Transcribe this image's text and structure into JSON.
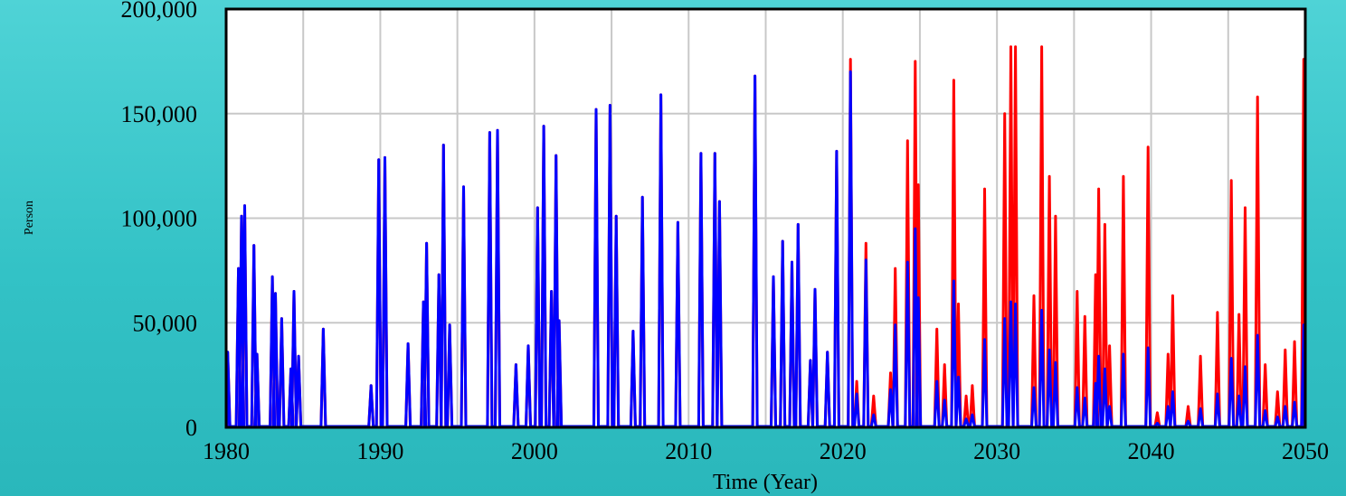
{
  "chart_data": {
    "type": "line",
    "title": "",
    "xlabel": "Time (Year)",
    "ylabel": "Person",
    "xlim": [
      1980,
      2050
    ],
    "ylim": [
      0,
      200000
    ],
    "x_ticks": [
      1980,
      1990,
      2000,
      2010,
      2020,
      2030,
      2040,
      2050
    ],
    "x_tick_labels": [
      "1980",
      "1990",
      "2000",
      "2010",
      "2020",
      "2030",
      "2040",
      "2050"
    ],
    "y_ticks": [
      0,
      50000,
      100000,
      150000,
      200000
    ],
    "y_tick_labels": [
      "0",
      "50,000",
      "100,000",
      "150,000",
      "200,000"
    ],
    "grid": true,
    "series": [
      {
        "color": "#ff0000",
        "peaks": [
          [
            1980.1,
            36000
          ],
          [
            1980.8,
            76000
          ],
          [
            1981.0,
            101000
          ],
          [
            1981.2,
            106000
          ],
          [
            1981.8,
            87000
          ],
          [
            1982.0,
            35000
          ],
          [
            1983.0,
            72000
          ],
          [
            1983.2,
            64000
          ],
          [
            1983.6,
            52000
          ],
          [
            1984.2,
            28000
          ],
          [
            1984.4,
            65000
          ],
          [
            1984.7,
            34000
          ],
          [
            1986.3,
            47000
          ],
          [
            1989.4,
            20000
          ],
          [
            1989.9,
            128000
          ],
          [
            1990.3,
            129000
          ],
          [
            1991.8,
            40000
          ],
          [
            1992.8,
            60000
          ],
          [
            1993.0,
            88000
          ],
          [
            1993.8,
            73000
          ],
          [
            1994.1,
            135000
          ],
          [
            1994.5,
            49000
          ],
          [
            1995.4,
            115000
          ],
          [
            1997.1,
            141000
          ],
          [
            1997.6,
            142000
          ],
          [
            1998.8,
            30000
          ],
          [
            1999.6,
            39000
          ],
          [
            2000.2,
            105000
          ],
          [
            2000.6,
            144000
          ],
          [
            2001.1,
            65000
          ],
          [
            2001.4,
            130000
          ],
          [
            2001.6,
            51000
          ],
          [
            2004.0,
            152000
          ],
          [
            2004.9,
            154000
          ],
          [
            2005.3,
            101000
          ],
          [
            2006.4,
            46000
          ],
          [
            2007.0,
            110000
          ],
          [
            2008.2,
            159000
          ],
          [
            2009.3,
            98000
          ],
          [
            2010.8,
            131000
          ],
          [
            2011.7,
            131000
          ],
          [
            2012.0,
            108000
          ],
          [
            2014.3,
            168000
          ],
          [
            2015.5,
            72000
          ],
          [
            2016.1,
            89000
          ],
          [
            2016.7,
            79000
          ],
          [
            2017.1,
            97000
          ],
          [
            2017.9,
            32000
          ],
          [
            2018.2,
            66000
          ],
          [
            2019.0,
            36000
          ],
          [
            2019.6,
            132000
          ],
          [
            2020.5,
            176000
          ],
          [
            2020.9,
            22000
          ],
          [
            2021.5,
            88000
          ],
          [
            2022.0,
            15000
          ],
          [
            2023.1,
            26000
          ],
          [
            2023.4,
            76000
          ],
          [
            2024.2,
            137000
          ],
          [
            2024.7,
            175000
          ],
          [
            2024.9,
            116000
          ],
          [
            2026.1,
            47000
          ],
          [
            2026.6,
            30000
          ],
          [
            2027.2,
            166000
          ],
          [
            2027.5,
            59000
          ],
          [
            2028.0,
            15000
          ],
          [
            2028.4,
            20000
          ],
          [
            2029.2,
            114000
          ],
          [
            2030.5,
            150000
          ],
          [
            2030.9,
            182000
          ],
          [
            2031.2,
            182000
          ],
          [
            2032.4,
            63000
          ],
          [
            2032.9,
            182000
          ],
          [
            2033.4,
            120000
          ],
          [
            2033.8,
            101000
          ],
          [
            2035.2,
            65000
          ],
          [
            2035.7,
            53000
          ],
          [
            2036.4,
            73000
          ],
          [
            2036.6,
            114000
          ],
          [
            2037.0,
            97000
          ],
          [
            2037.3,
            39000
          ],
          [
            2038.2,
            120000
          ],
          [
            2039.8,
            134000
          ],
          [
            2040.4,
            7000
          ],
          [
            2041.1,
            35000
          ],
          [
            2041.4,
            63000
          ],
          [
            2042.4,
            10000
          ],
          [
            2043.2,
            34000
          ],
          [
            2044.3,
            55000
          ],
          [
            2045.2,
            118000
          ],
          [
            2045.7,
            54000
          ],
          [
            2046.1,
            105000
          ],
          [
            2046.9,
            158000
          ],
          [
            2047.4,
            30000
          ],
          [
            2048.2,
            17000
          ],
          [
            2048.7,
            37000
          ],
          [
            2049.3,
            41000
          ],
          [
            2049.9,
            176000
          ]
        ]
      },
      {
        "color": "#0000ff",
        "peaks": [
          [
            1980.1,
            36000
          ],
          [
            1980.8,
            76000
          ],
          [
            1981.0,
            101000
          ],
          [
            1981.2,
            106000
          ],
          [
            1981.8,
            87000
          ],
          [
            1982.0,
            35000
          ],
          [
            1983.0,
            72000
          ],
          [
            1983.2,
            64000
          ],
          [
            1983.6,
            52000
          ],
          [
            1984.2,
            28000
          ],
          [
            1984.4,
            65000
          ],
          [
            1984.7,
            34000
          ],
          [
            1986.3,
            47000
          ],
          [
            1989.4,
            20000
          ],
          [
            1989.9,
            128000
          ],
          [
            1990.3,
            129000
          ],
          [
            1991.8,
            40000
          ],
          [
            1992.8,
            60000
          ],
          [
            1993.0,
            88000
          ],
          [
            1993.8,
            73000
          ],
          [
            1994.1,
            135000
          ],
          [
            1994.5,
            49000
          ],
          [
            1995.4,
            115000
          ],
          [
            1997.1,
            141000
          ],
          [
            1997.6,
            142000
          ],
          [
            1998.8,
            30000
          ],
          [
            1999.6,
            39000
          ],
          [
            2000.2,
            105000
          ],
          [
            2000.6,
            144000
          ],
          [
            2001.1,
            65000
          ],
          [
            2001.4,
            130000
          ],
          [
            2001.6,
            51000
          ],
          [
            2004.0,
            152000
          ],
          [
            2004.9,
            154000
          ],
          [
            2005.3,
            101000
          ],
          [
            2006.4,
            46000
          ],
          [
            2007.0,
            110000
          ],
          [
            2008.2,
            159000
          ],
          [
            2009.3,
            98000
          ],
          [
            2010.8,
            131000
          ],
          [
            2011.7,
            131000
          ],
          [
            2012.0,
            108000
          ],
          [
            2014.3,
            168000
          ],
          [
            2015.5,
            72000
          ],
          [
            2016.1,
            89000
          ],
          [
            2016.7,
            79000
          ],
          [
            2017.1,
            97000
          ],
          [
            2017.9,
            32000
          ],
          [
            2018.2,
            66000
          ],
          [
            2019.0,
            36000
          ],
          [
            2019.6,
            132000
          ],
          [
            2020.5,
            170000
          ],
          [
            2020.9,
            16000
          ],
          [
            2021.5,
            80000
          ],
          [
            2022.0,
            6000
          ],
          [
            2023.1,
            18000
          ],
          [
            2023.4,
            49000
          ],
          [
            2024.2,
            79000
          ],
          [
            2024.7,
            95000
          ],
          [
            2024.9,
            62000
          ],
          [
            2026.1,
            22000
          ],
          [
            2026.6,
            13000
          ],
          [
            2027.2,
            70000
          ],
          [
            2027.5,
            24000
          ],
          [
            2028.0,
            4000
          ],
          [
            2028.4,
            6000
          ],
          [
            2029.2,
            42000
          ],
          [
            2030.5,
            52000
          ],
          [
            2030.9,
            60000
          ],
          [
            2031.2,
            59000
          ],
          [
            2032.4,
            19000
          ],
          [
            2032.9,
            56000
          ],
          [
            2033.4,
            37000
          ],
          [
            2033.8,
            31000
          ],
          [
            2035.2,
            19000
          ],
          [
            2035.7,
            14000
          ],
          [
            2036.4,
            21000
          ],
          [
            2036.6,
            34000
          ],
          [
            2037.0,
            28000
          ],
          [
            2037.3,
            10000
          ],
          [
            2038.2,
            35000
          ],
          [
            2039.8,
            38000
          ],
          [
            2040.4,
            2000
          ],
          [
            2041.1,
            10000
          ],
          [
            2041.4,
            17000
          ],
          [
            2042.4,
            3000
          ],
          [
            2043.2,
            9000
          ],
          [
            2044.3,
            16000
          ],
          [
            2045.2,
            33000
          ],
          [
            2045.7,
            15000
          ],
          [
            2046.1,
            29000
          ],
          [
            2046.9,
            44000
          ],
          [
            2047.4,
            8000
          ],
          [
            2048.2,
            5000
          ],
          [
            2048.7,
            10000
          ],
          [
            2049.3,
            12000
          ],
          [
            2049.9,
            49000
          ]
        ]
      }
    ]
  }
}
